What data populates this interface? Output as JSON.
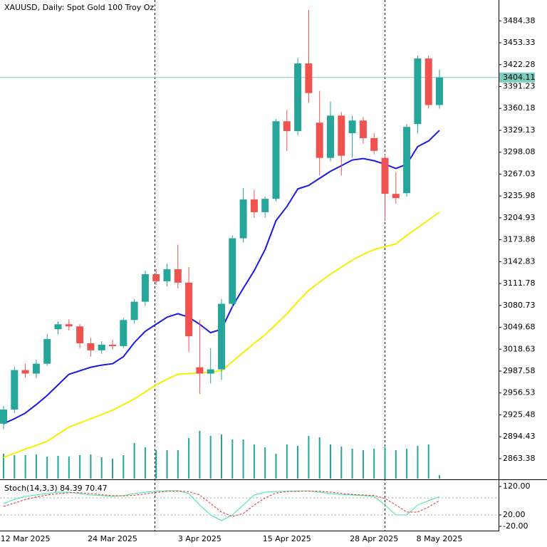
{
  "chart_data": [
    {
      "type": "candlestick",
      "title": "XAUUSD, Daily:  Spot Gold 100 Troy Oz",
      "categories": [
        null,
        null,
        "12 Mar 2025",
        null,
        null,
        null,
        null,
        null,
        null,
        null,
        "24 Mar 2025",
        null,
        null,
        null,
        null,
        null,
        null,
        null,
        "3 Apr 2025",
        null,
        null,
        null,
        null,
        null,
        null,
        null,
        "15 Apr 2025",
        null,
        null,
        null,
        null,
        null,
        null,
        null,
        "28 Apr 2025",
        null,
        null,
        null,
        null,
        null,
        "8 May 2025"
      ],
      "open": [
        2913,
        2933,
        2989,
        2984,
        2998,
        3047,
        3054,
        3051,
        3027,
        3017,
        3025,
        3023,
        3060,
        3086,
        3125,
        3115,
        3132,
        3113,
        2993,
        2984,
        2990,
        3083,
        3176,
        3231,
        3213,
        3232,
        3342,
        3328,
        3424,
        3340,
        3290,
        3350,
        3325,
        3343,
        3318,
        3290,
        3239,
        3240,
        3338,
        3431,
        3365
      ],
      "high": [
        2938,
        2994,
        2998,
        3004,
        3040,
        3058,
        3061,
        3054,
        3035,
        3030,
        3032,
        3063,
        3090,
        3130,
        3133,
        3140,
        3167,
        3135,
        3060,
        3020,
        3090,
        3180,
        3247,
        3245,
        3235,
        3345,
        3358,
        3432,
        3500,
        3385,
        3370,
        3355,
        3350,
        3348,
        3325,
        3295,
        3270,
        3338,
        3435,
        3435,
        3415
      ],
      "low": [
        2905,
        2928,
        2978,
        2978,
        2995,
        3040,
        3045,
        3020,
        3008,
        3012,
        3018,
        3020,
        3055,
        3080,
        3110,
        3108,
        3105,
        3015,
        2955,
        2970,
        2975,
        3078,
        3170,
        3205,
        3205,
        3228,
        3300,
        3322,
        3368,
        3265,
        3285,
        3265,
        3290,
        3310,
        3295,
        3200,
        3225,
        3235,
        3325,
        3360,
        3360
      ],
      "close": [
        2933,
        2989,
        2984,
        2998,
        3033,
        3054,
        3051,
        3027,
        3017,
        3025,
        3023,
        3060,
        3086,
        3125,
        3115,
        3132,
        3113,
        3037,
        2984,
        2990,
        3083,
        3176,
        3231,
        3213,
        3232,
        3342,
        3328,
        3424,
        3382,
        3290,
        3350,
        3293,
        3343,
        3318,
        3300,
        3239,
        3233,
        3334,
        3431,
        3365,
        3404.11
      ],
      "up_color": "#26a69a",
      "down_color": "#ef5350",
      "series": [
        {
          "color": "#1a1ae0",
          "values": [
            2913,
            2920,
            2928,
            2940,
            2953,
            2968,
            2983,
            2988,
            2993,
            2996,
            2998,
            3008,
            3028,
            3044,
            3054,
            3064,
            3069,
            3064,
            3054,
            3042,
            3047,
            3079,
            3105,
            3130,
            3160,
            3201,
            3221,
            3246,
            3251,
            3261,
            3271,
            3279,
            3287,
            3289,
            3286,
            3281,
            3275,
            3281,
            3306,
            3314,
            3329
          ]
        },
        {
          "color": "#f5f000",
          "values": [
            2865,
            2871,
            2877,
            2882,
            2888,
            2898,
            2908,
            2914,
            2920,
            2926,
            2932,
            2940,
            2948,
            2958,
            2968,
            2976,
            2983,
            2984,
            2985,
            2986,
            2988,
            3001,
            3014,
            3027,
            3039,
            3054,
            3069,
            3086,
            3102,
            3114,
            3125,
            3135,
            3145,
            3153,
            3160,
            3164,
            3168,
            3180,
            3191,
            3202,
            3213
          ]
        }
      ],
      "volume": [
        35,
        33,
        33,
        34,
        31,
        32,
        31,
        33,
        34,
        30,
        28,
        33,
        50,
        44,
        40,
        40,
        40,
        57,
        67,
        60,
        62,
        55,
        55,
        48,
        44,
        35,
        48,
        46,
        60,
        58,
        48,
        45,
        42,
        40,
        42,
        44,
        40,
        42,
        46,
        48,
        5
      ],
      "volume_color": "#26a69a",
      "current_price": 3404.11,
      "current_color": "#7ccdc0",
      "ylim": [
        2835,
        3514
      ],
      "yticks": [
        3484.38,
        3453.33,
        3422.28,
        3391.23,
        3360.18,
        3329.13,
        3298.08,
        3267.03,
        3235.98,
        3204.93,
        3173.88,
        3142.83,
        3111.78,
        3080.73,
        3049.68,
        3018.63,
        2987.58,
        2956.53,
        2925.48,
        2894.43,
        2863.38
      ]
    },
    {
      "type": "line",
      "title": "Stoch(14,3,3) 84.39 70.47",
      "series": [
        {
          "color": "#3ee6a8",
          "values": [
            60,
            75,
            85,
            90,
            95,
            100,
            100,
            95,
            90,
            88,
            85,
            88,
            95,
            100,
            103,
            105,
            105,
            95,
            55,
            20,
            0,
            20,
            55,
            90,
            100,
            102,
            103,
            104,
            104,
            100,
            95,
            92,
            90,
            88,
            85,
            55,
            20,
            20,
            55,
            70,
            84.39
          ]
        },
        {
          "color": "#e53030",
          "dashed": true,
          "values": [
            50,
            62,
            74,
            83,
            90,
            95,
            98,
            98,
            95,
            91,
            88,
            87,
            89,
            94,
            99,
            103,
            104,
            102,
            90,
            60,
            30,
            15,
            25,
            55,
            80,
            97,
            102,
            103,
            104,
            103,
            100,
            96,
            92,
            90,
            88,
            78,
            55,
            30,
            30,
            48,
            70.47
          ]
        }
      ],
      "levels": [
        80,
        20
      ],
      "ylim": [
        -35,
        137.5
      ],
      "yticks": [
        {
          "value": 120,
          "label": "120.00"
        },
        {
          "value": 20,
          "label": "20.00"
        },
        {
          "value": -20,
          "label": "-20.00"
        }
      ]
    }
  ]
}
